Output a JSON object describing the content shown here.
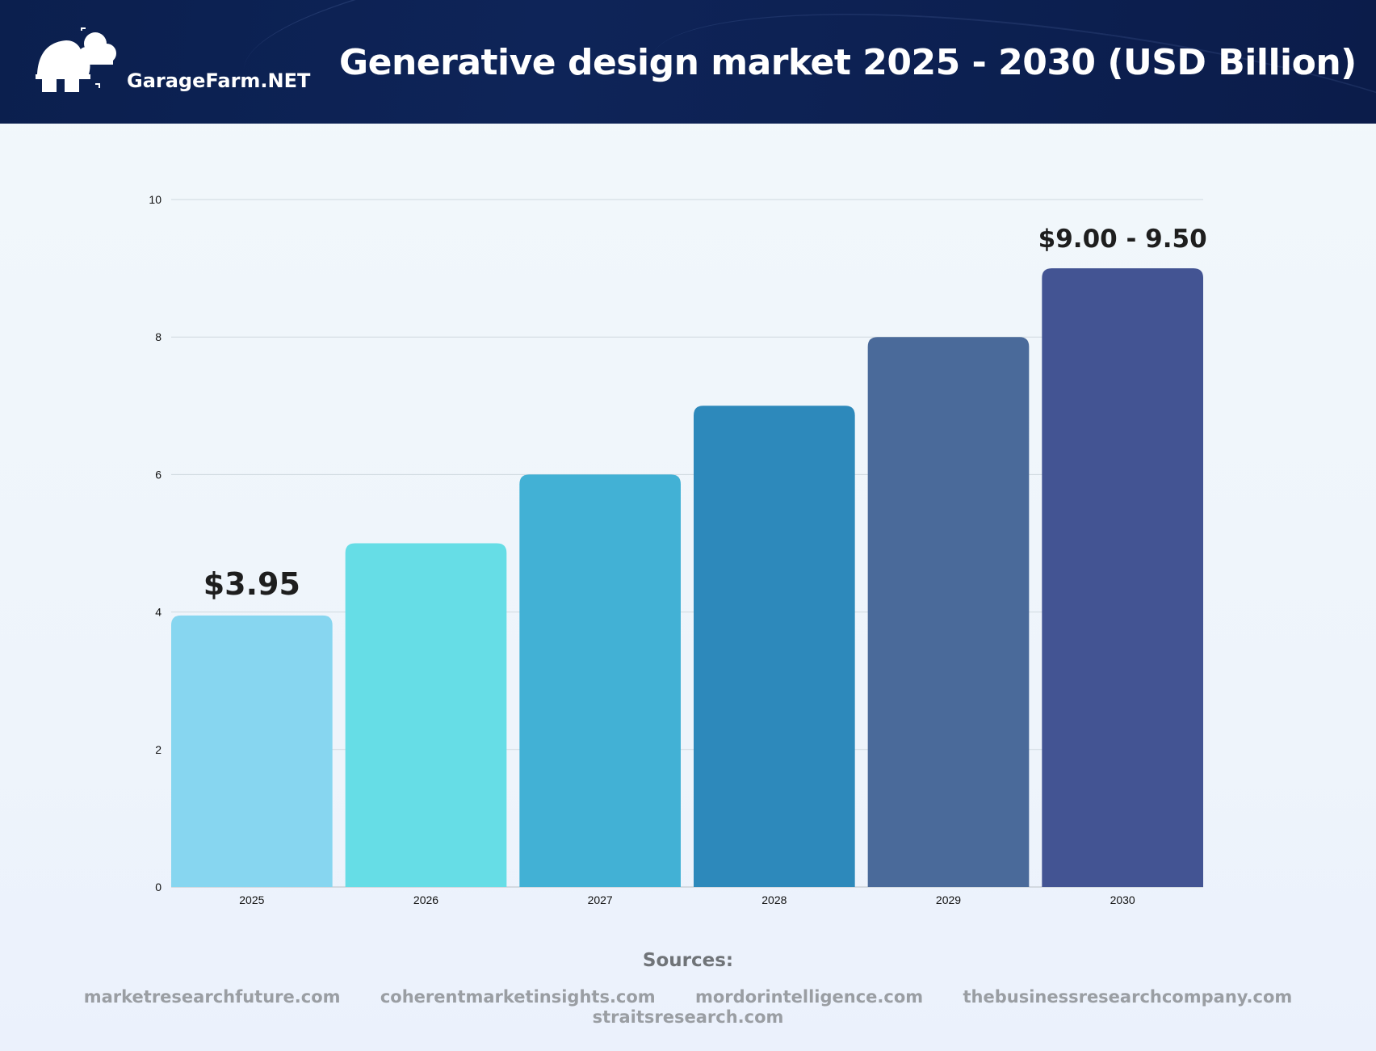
{
  "header": {
    "brand": "GarageFarm.NET",
    "logo_icon": "cloud-house-logo-icon",
    "title": "Generative design market 2025 - 2030 (USD Billion)",
    "background_color": "#0d2255"
  },
  "chart_data": {
    "type": "bar",
    "title": "Generative design market 2025 - 2030 (USD Billion)",
    "categories": [
      "2025",
      "2026",
      "2027",
      "2028",
      "2029",
      "2030"
    ],
    "values": [
      3.95,
      5,
      6,
      7,
      8,
      9
    ],
    "colors": [
      "#87d6f0",
      "#66dde6",
      "#42b1d5",
      "#2d89bb",
      "#4a6a9a",
      "#435493"
    ],
    "data_labels": [
      {
        "category": "2025",
        "text": "$3.95"
      },
      {
        "category": "2030",
        "text": "$9.00 - 9.50"
      }
    ],
    "yticks": [
      "0",
      "2",
      "4",
      "6",
      "8",
      "10"
    ],
    "ylim": [
      0,
      10
    ],
    "grid": true,
    "xlabel": "",
    "ylabel": ""
  },
  "sources": {
    "title": "Sources:",
    "line1": [
      "marketresearchfuture.com",
      "coherentmarketinsights.com",
      "mordorintelligence.com",
      "thebusinessresearchcompany.com"
    ],
    "line2": [
      "straitsresearch.com"
    ]
  }
}
